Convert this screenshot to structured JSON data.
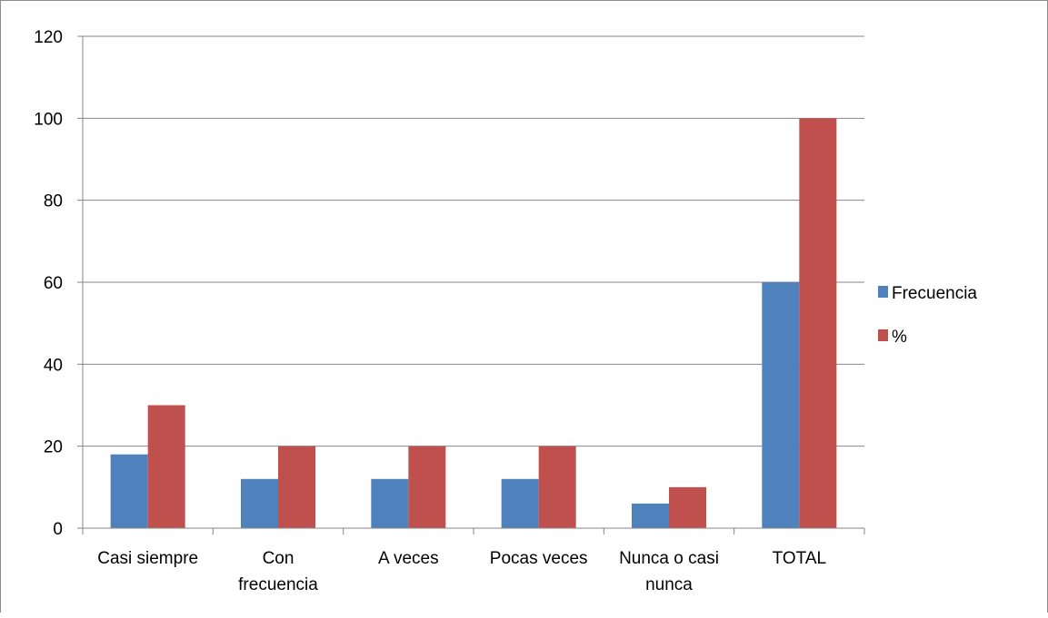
{
  "chart_data": {
    "type": "bar",
    "title": "",
    "xlabel": "",
    "ylabel": "",
    "categories": [
      "Casi siempre",
      "Con frecuencia",
      "A veces",
      "Pocas veces",
      "Nunca o casi nunca",
      "TOTAL"
    ],
    "category_lines": [
      [
        "Casi siempre"
      ],
      [
        "Con",
        "frecuencia"
      ],
      [
        "A veces"
      ],
      [
        "Pocas veces"
      ],
      [
        "Nunca o casi",
        "nunca"
      ],
      [
        "TOTAL"
      ]
    ],
    "series": [
      {
        "name": "Frecuencia",
        "color": "#4f81bd",
        "values": [
          18,
          12,
          12,
          12,
          6,
          60
        ]
      },
      {
        "name": "%",
        "color": "#c0504d",
        "values": [
          30,
          20,
          20,
          20,
          10,
          100
        ]
      }
    ],
    "ylim": [
      0,
      120
    ],
    "yticks": [
      "0",
      "20",
      "40",
      "60",
      "80",
      "100",
      "120"
    ],
    "grid": true,
    "legend_position": "right"
  }
}
